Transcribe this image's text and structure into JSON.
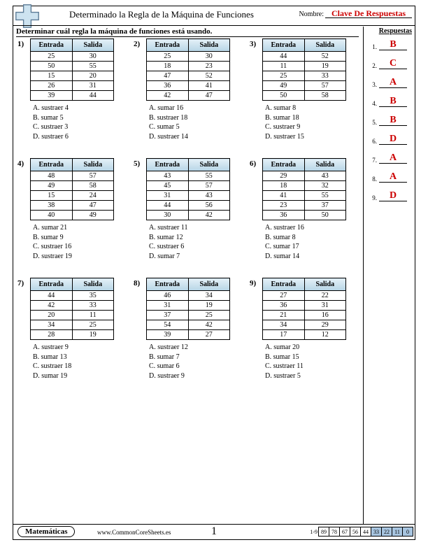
{
  "header": {
    "title": "Determinado la Regla de la Máquina de Funciones",
    "name_label": "Nombre:",
    "name_value": "Clave De Respuestas"
  },
  "instruction": "Determinar cuál regla la máquina de funciones está usando.",
  "answers_header": "Respuestas",
  "columns": {
    "in": "Entrada",
    "out": "Salida"
  },
  "problems": [
    {
      "n": "1)",
      "rows": [
        [
          25,
          30
        ],
        [
          50,
          55
        ],
        [
          15,
          20
        ],
        [
          26,
          31
        ],
        [
          39,
          44
        ]
      ],
      "choices": [
        "A. sustraer 4",
        "B. sumar 5",
        "C. sustraer 3",
        "D. sustraer 6"
      ]
    },
    {
      "n": "2)",
      "rows": [
        [
          25,
          30
        ],
        [
          18,
          23
        ],
        [
          47,
          52
        ],
        [
          36,
          41
        ],
        [
          42,
          47
        ]
      ],
      "choices": [
        "A. sumar 16",
        "B. sustraer 18",
        "C. sumar 5",
        "D. sustraer 14"
      ]
    },
    {
      "n": "3)",
      "rows": [
        [
          44,
          52
        ],
        [
          11,
          19
        ],
        [
          25,
          33
        ],
        [
          49,
          57
        ],
        [
          50,
          58
        ]
      ],
      "choices": [
        "A. sumar 8",
        "B. sumar 18",
        "C. sustraer 9",
        "D. sustraer 15"
      ]
    },
    {
      "n": "4)",
      "rows": [
        [
          48,
          57
        ],
        [
          49,
          58
        ],
        [
          15,
          24
        ],
        [
          38,
          47
        ],
        [
          40,
          49
        ]
      ],
      "choices": [
        "A. sumar 21",
        "B. sumar 9",
        "C. sustraer 16",
        "D. sustraer 19"
      ]
    },
    {
      "n": "5)",
      "rows": [
        [
          43,
          55
        ],
        [
          45,
          57
        ],
        [
          31,
          43
        ],
        [
          44,
          56
        ],
        [
          30,
          42
        ]
      ],
      "choices": [
        "A. sustraer 11",
        "B. sumar 12",
        "C. sustraer 6",
        "D. sumar 7"
      ]
    },
    {
      "n": "6)",
      "rows": [
        [
          29,
          43
        ],
        [
          18,
          32
        ],
        [
          41,
          55
        ],
        [
          23,
          37
        ],
        [
          36,
          50
        ]
      ],
      "choices": [
        "A. sustraer 16",
        "B. sumar 8",
        "C. sumar 17",
        "D. sumar 14"
      ]
    },
    {
      "n": "7)",
      "rows": [
        [
          44,
          35
        ],
        [
          42,
          33
        ],
        [
          20,
          11
        ],
        [
          34,
          25
        ],
        [
          28,
          19
        ]
      ],
      "choices": [
        "A. sustraer 9",
        "B. sumar 13",
        "C. sustraer 18",
        "D. sumar 19"
      ]
    },
    {
      "n": "8)",
      "rows": [
        [
          46,
          34
        ],
        [
          31,
          19
        ],
        [
          37,
          25
        ],
        [
          54,
          42
        ],
        [
          39,
          27
        ]
      ],
      "choices": [
        "A. sustraer 12",
        "B. sumar 7",
        "C. sumar 6",
        "D. sustraer 9"
      ]
    },
    {
      "n": "9)",
      "rows": [
        [
          27,
          22
        ],
        [
          36,
          31
        ],
        [
          21,
          16
        ],
        [
          34,
          29
        ],
        [
          17,
          12
        ]
      ],
      "choices": [
        "A. sumar 20",
        "B. sumar 15",
        "C. sustraer 11",
        "D. sustraer 5"
      ]
    }
  ],
  "answers": [
    {
      "n": "1.",
      "v": "B"
    },
    {
      "n": "2.",
      "v": "C"
    },
    {
      "n": "3.",
      "v": "A"
    },
    {
      "n": "4.",
      "v": "B"
    },
    {
      "n": "5.",
      "v": "B"
    },
    {
      "n": "6.",
      "v": "D"
    },
    {
      "n": "7.",
      "v": "A"
    },
    {
      "n": "8.",
      "v": "A"
    },
    {
      "n": "9.",
      "v": "D"
    }
  ],
  "footer": {
    "subject": "Matemáticas",
    "url": "www.CommonCoreSheets.es",
    "page": "1",
    "score_label": "1-9",
    "scores": [
      "89",
      "78",
      "67",
      "56",
      "44",
      "33",
      "22",
      "11",
      "0"
    ],
    "blue_from": 5
  },
  "colors": {
    "answer_red": "#c00",
    "cross_fill": "#cde3f0",
    "cross_stroke": "#5a7a95"
  }
}
